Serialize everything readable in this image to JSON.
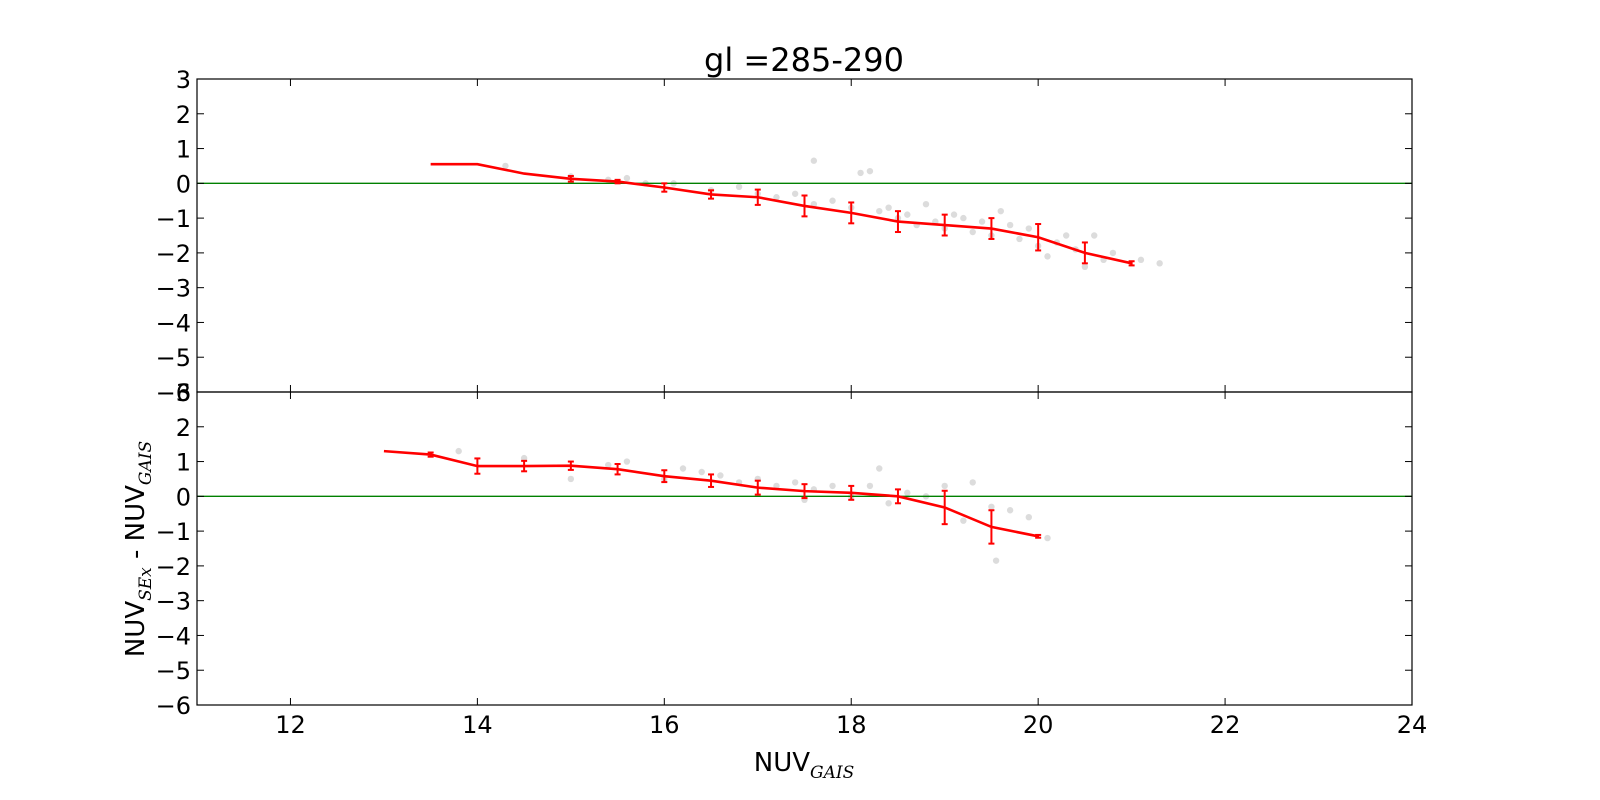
{
  "chart_data": {
    "type": "line",
    "title": "gl =285-290",
    "xlabel": {
      "main": "NUV",
      "sub": "GAIS"
    },
    "ylabel": {
      "a_main": "NUV",
      "a_sub": "SEx",
      "sep": " - ",
      "b_main": "NUV",
      "b_sub": "GAIS"
    },
    "xlim": [
      11,
      24
    ],
    "x_ticks": [
      12,
      14,
      16,
      18,
      20,
      22,
      24
    ],
    "colors": {
      "line": "#ff0000",
      "zero_line": "#008000",
      "scatter": "#808080"
    },
    "panels": [
      {
        "ylim": [
          -6,
          3
        ],
        "y_ticks": [
          3,
          2,
          1,
          0,
          -1,
          -2,
          -3,
          -4,
          -5,
          -6
        ],
        "zero_line": 0,
        "series": [
          {
            "x": [
              13.5,
              14.0,
              14.5,
              15.0,
              15.5,
              16.0,
              16.5,
              17.0,
              17.5,
              18.0,
              18.5,
              19.0,
              19.5,
              20.0,
              20.5,
              21.0
            ],
            "y": [
              0.55,
              0.55,
              0.28,
              0.13,
              0.05,
              -0.12,
              -0.32,
              -0.4,
              -0.65,
              -0.85,
              -1.1,
              -1.2,
              -1.3,
              -1.55,
              -2.0,
              -2.3
            ],
            "err": [
              0.0,
              0.0,
              0.0,
              0.08,
              0.05,
              0.12,
              0.12,
              0.22,
              0.3,
              0.3,
              0.3,
              0.3,
              0.3,
              0.38,
              0.3,
              0.06
            ]
          }
        ],
        "scatter": {
          "x": [
            14.3,
            15.0,
            15.4,
            15.6,
            15.8,
            16.1,
            16.5,
            16.8,
            17.0,
            17.2,
            17.4,
            17.6,
            17.6,
            17.8,
            18.0,
            18.1,
            18.2,
            18.3,
            18.4,
            18.5,
            18.6,
            18.7,
            18.8,
            18.9,
            19.0,
            19.1,
            19.2,
            19.3,
            19.4,
            19.5,
            19.6,
            19.7,
            19.8,
            19.9,
            20.0,
            20.1,
            20.2,
            20.3,
            20.4,
            20.5,
            20.6,
            20.7,
            20.8,
            21.1,
            21.3
          ],
          "y": [
            0.5,
            0.2,
            0.1,
            0.15,
            0.0,
            0.0,
            -0.2,
            -0.1,
            -0.3,
            -0.4,
            -0.3,
            -0.6,
            0.65,
            -0.5,
            -0.7,
            0.3,
            0.35,
            -0.8,
            -0.7,
            -1.0,
            -0.9,
            -1.2,
            -0.6,
            -1.1,
            -1.3,
            -0.9,
            -1.0,
            -1.4,
            -1.1,
            -1.5,
            -0.8,
            -1.2,
            -1.6,
            -1.3,
            -1.8,
            -2.1,
            -1.7,
            -1.5,
            -1.9,
            -2.4,
            -1.5,
            -2.2,
            -2.0,
            -2.2,
            -2.3
          ]
        }
      },
      {
        "ylim": [
          -6,
          3
        ],
        "y_ticks": [
          3,
          2,
          1,
          0,
          -1,
          -2,
          -3,
          -4,
          -5,
          -6
        ],
        "zero_line": 0,
        "series": [
          {
            "x": [
              13.0,
              13.5,
              14.0,
              14.5,
              15.0,
              15.5,
              16.0,
              16.5,
              17.0,
              17.5,
              18.0,
              18.5,
              19.0,
              19.5,
              20.0
            ],
            "y": [
              1.3,
              1.2,
              0.87,
              0.87,
              0.88,
              0.78,
              0.58,
              0.45,
              0.25,
              0.15,
              0.1,
              0.0,
              -0.32,
              -0.88,
              -1.15
            ],
            "err": [
              0.0,
              0.06,
              0.22,
              0.15,
              0.12,
              0.15,
              0.17,
              0.18,
              0.2,
              0.2,
              0.2,
              0.2,
              0.48,
              0.48,
              0.04
            ]
          }
        ],
        "scatter": {
          "x": [
            13.8,
            14.5,
            15.0,
            15.4,
            15.6,
            16.0,
            16.2,
            16.4,
            16.6,
            16.8,
            17.0,
            17.2,
            17.4,
            17.5,
            17.6,
            17.8,
            18.0,
            18.2,
            18.3,
            18.4,
            18.6,
            18.8,
            19.0,
            19.2,
            19.3,
            19.5,
            19.7,
            19.9,
            20.1,
            19.55
          ],
          "y": [
            1.3,
            1.1,
            0.5,
            0.9,
            1.0,
            0.5,
            0.8,
            0.7,
            0.6,
            0.4,
            0.5,
            0.3,
            0.4,
            -0.1,
            0.2,
            0.3,
            0.0,
            0.3,
            0.8,
            -0.2,
            0.1,
            0.0,
            0.3,
            -0.7,
            0.4,
            -0.3,
            -0.4,
            -0.6,
            -1.2,
            -1.85
          ]
        }
      }
    ]
  }
}
